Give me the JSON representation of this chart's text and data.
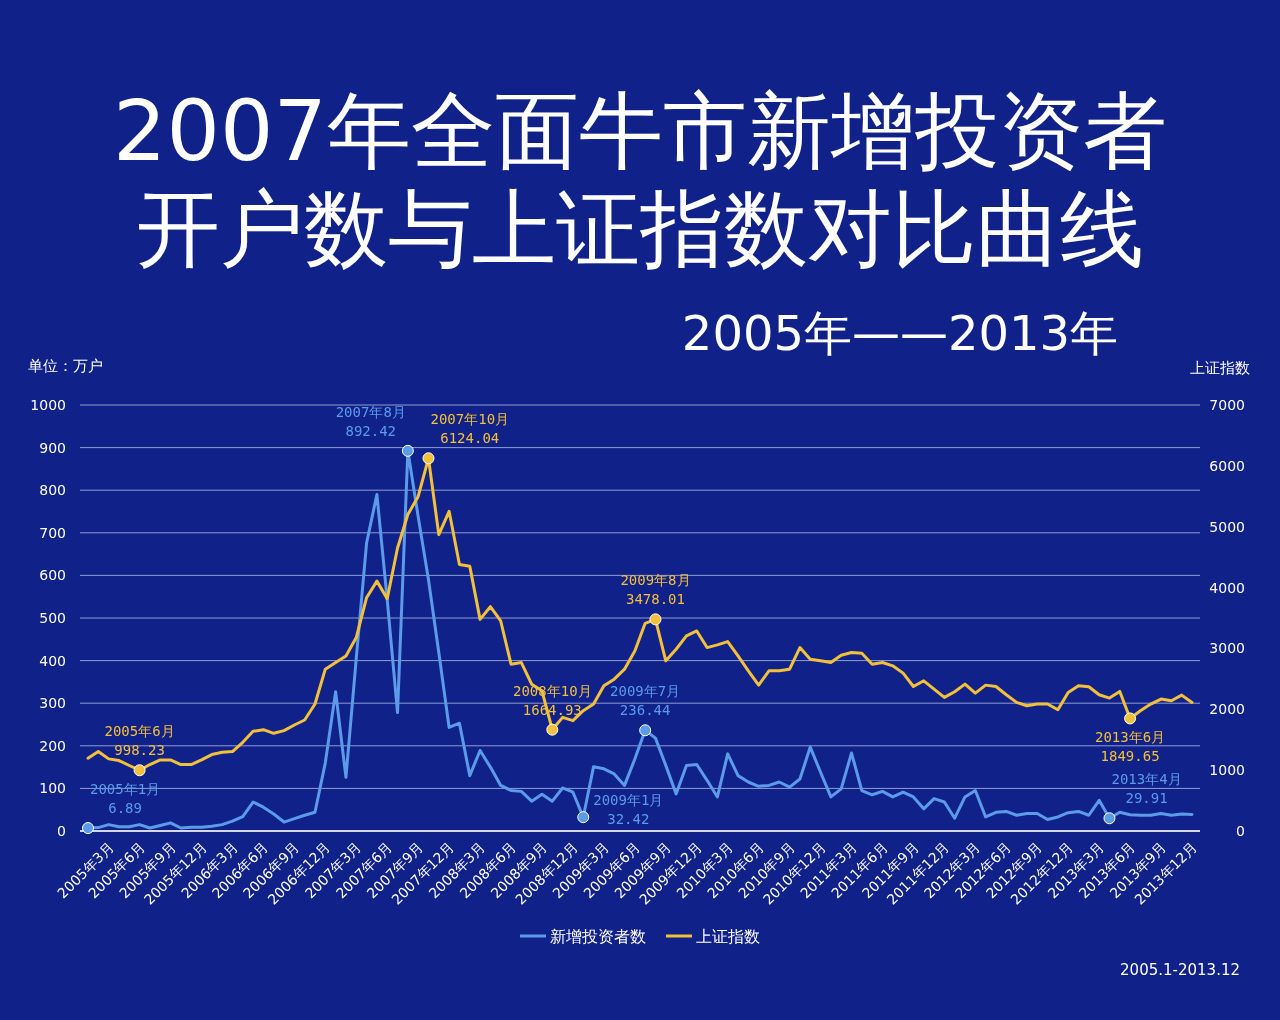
{
  "chart_data": {
    "type": "line",
    "title": "2007年全面牛市新增投资者开户数与上证指数对比曲线",
    "subtitle": "2005年——2013年",
    "ylabel": "单位：万户",
    "y2label": "上证指数",
    "categories": [
      null,
      null,
      "2005年3月",
      null,
      null,
      "2005年6月",
      null,
      null,
      "2005年9月",
      null,
      null,
      "2005年12月",
      null,
      null,
      "2006年3月",
      null,
      null,
      "2006年6月",
      null,
      null,
      "2006年9月",
      null,
      null,
      "2006年12月",
      null,
      null,
      "2007年3月",
      null,
      null,
      "2007年6月",
      null,
      null,
      "2007年9月",
      null,
      null,
      "2007年12月",
      null,
      null,
      "2008年3月",
      null,
      null,
      "2008年6月",
      null,
      null,
      "2008年9月",
      null,
      null,
      "2008年12月",
      null,
      null,
      "2009年3月",
      null,
      null,
      "2009年6月",
      null,
      null,
      "2009年9月",
      null,
      null,
      "2009年12月",
      null,
      null,
      "2010年3月",
      null,
      null,
      "2010年6月",
      null,
      null,
      "2010年9月",
      null,
      null,
      "2010年12月",
      null,
      null,
      "2011年3月",
      null,
      null,
      "2011年6月",
      null,
      null,
      "2011年9月",
      null,
      null,
      "2011年12月",
      null,
      null,
      "2012年3月",
      null,
      null,
      "2012年6月",
      null,
      null,
      "2012年9月",
      null,
      null,
      "2012年12月",
      null,
      null,
      "2013年3月",
      null,
      null,
      "2013年6月",
      null,
      null,
      "2013年9月",
      null,
      null,
      "2013年12月"
    ],
    "series": [
      {
        "name": "新增投资者数",
        "color": "#5b9bea",
        "axis": "y",
        "values": [
          6.89,
          8,
          15,
          10,
          10,
          15,
          7,
          13,
          19,
          7,
          9,
          9,
          11,
          15,
          23,
          34,
          68,
          56,
          40,
          21,
          29,
          37,
          44,
          160,
          327,
          126,
          405,
          676,
          790,
          543,
          278,
          892.42,
          738,
          590,
          419,
          243,
          253,
          130,
          189,
          150,
          107,
          95,
          93,
          70,
          86,
          70,
          101,
          91,
          32.42,
          151,
          146,
          134,
          107,
          169,
          236.44,
          218,
          154,
          87,
          154,
          156,
          119,
          80,
          181,
          130,
          115,
          105,
          107,
          115,
          103,
          122,
          197,
          138,
          80,
          99,
          183,
          95,
          85,
          93,
          80,
          91,
          80,
          52,
          76,
          68,
          30,
          80,
          95,
          33,
          44,
          46,
          37,
          41,
          41,
          27,
          33,
          43,
          46,
          37,
          72,
          29.91,
          44,
          38,
          37,
          37,
          41,
          37,
          40,
          39
        ],
        "value_labels": [
          "2005年1月\n6.89",
          null,
          null,
          null,
          null,
          null,
          null,
          null,
          null,
          null,
          null,
          null,
          null,
          null,
          null,
          null,
          null,
          null,
          null,
          null,
          null,
          null,
          null,
          null,
          null,
          null,
          null,
          null,
          null,
          null,
          null,
          "2007年8月\n892.42",
          null,
          null,
          null,
          null,
          null,
          null,
          null,
          null,
          null,
          null,
          null,
          null,
          null,
          null,
          null,
          null,
          "2009年1月\n32.42",
          null,
          null,
          null,
          null,
          null,
          "2009年7月\n236.44",
          null,
          null,
          null,
          null,
          null,
          null,
          null,
          null,
          null,
          null,
          null,
          null,
          null,
          null,
          null,
          null,
          null,
          null,
          null,
          null,
          null,
          null,
          null,
          null,
          null,
          null,
          null,
          null,
          null,
          null,
          null,
          null,
          null,
          null,
          null,
          null,
          null,
          null,
          null,
          null,
          null,
          null,
          null,
          null,
          "2013年4月\n29.91",
          null,
          null,
          null,
          null,
          null,
          null,
          null,
          null
        ]
      },
      {
        "name": "上证指数",
        "color": "#f2c03a",
        "axis": "y2",
        "values": [
          1196,
          1305,
          1185,
          1158,
          1076,
          998.23,
          1092,
          1168,
          1168,
          1092,
          1092,
          1168,
          1256,
          1294,
          1305,
          1458,
          1638,
          1665,
          1605,
          1649,
          1742,
          1824,
          2086,
          2659,
          2768,
          2877,
          3178,
          3833,
          4106,
          3817,
          4650,
          5200,
          5498,
          6124.04,
          4870,
          5253,
          4379,
          4352,
          3478,
          3686,
          3451,
          2741,
          2768,
          2413,
          2304,
          1664.93,
          1867,
          1813,
          1977,
          2086,
          2386,
          2495,
          2659,
          2959,
          3413,
          3478.01,
          2796,
          2987,
          3205,
          3287,
          3014,
          3058,
          3112,
          2877,
          2632,
          2397,
          2632,
          2632,
          2659,
          3014,
          2823,
          2796,
          2768,
          2888,
          2932,
          2921,
          2741,
          2768,
          2714,
          2594,
          2375,
          2468,
          2331,
          2195,
          2288,
          2413,
          2266,
          2397,
          2375,
          2239,
          2113,
          2058,
          2086,
          2086,
          1993,
          2277,
          2386,
          2370,
          2239,
          2184,
          2293,
          1849.65,
          1977,
          2086,
          2168,
          2140,
          2233,
          2113
        ],
        "value_labels": [
          null,
          null,
          null,
          null,
          null,
          "2005年6月\n998.23",
          null,
          null,
          null,
          null,
          null,
          null,
          null,
          null,
          null,
          null,
          null,
          null,
          null,
          null,
          null,
          null,
          null,
          null,
          null,
          null,
          null,
          null,
          null,
          null,
          null,
          null,
          null,
          "2007年10月\n6124.04",
          null,
          null,
          null,
          null,
          null,
          null,
          null,
          null,
          null,
          null,
          null,
          "2008年10月\n1664.93",
          null,
          null,
          null,
          null,
          null,
          null,
          null,
          null,
          null,
          "2009年8月\n3478.01",
          null,
          null,
          null,
          null,
          null,
          null,
          null,
          null,
          null,
          null,
          null,
          null,
          null,
          null,
          null,
          null,
          null,
          null,
          null,
          null,
          null,
          null,
          null,
          null,
          null,
          null,
          null,
          null,
          null,
          null,
          null,
          null,
          null,
          null,
          null,
          null,
          null,
          null,
          null,
          null,
          null,
          null,
          null,
          null,
          null,
          "2013年6月\n1849.65",
          null,
          null,
          null,
          null,
          null,
          null
        ]
      }
    ],
    "ylim": [
      0,
      1000
    ],
    "yticks": [
      0,
      100,
      200,
      300,
      400,
      500,
      600,
      700,
      800,
      900,
      1000
    ],
    "y2lim": [
      0,
      7000
    ],
    "y2ticks": [
      0,
      1000,
      2000,
      3000,
      4000,
      5000,
      6000,
      7000
    ],
    "grid": "y",
    "legend": "bottom",
    "annotations": [
      "2005.1-2013.12"
    ]
  }
}
